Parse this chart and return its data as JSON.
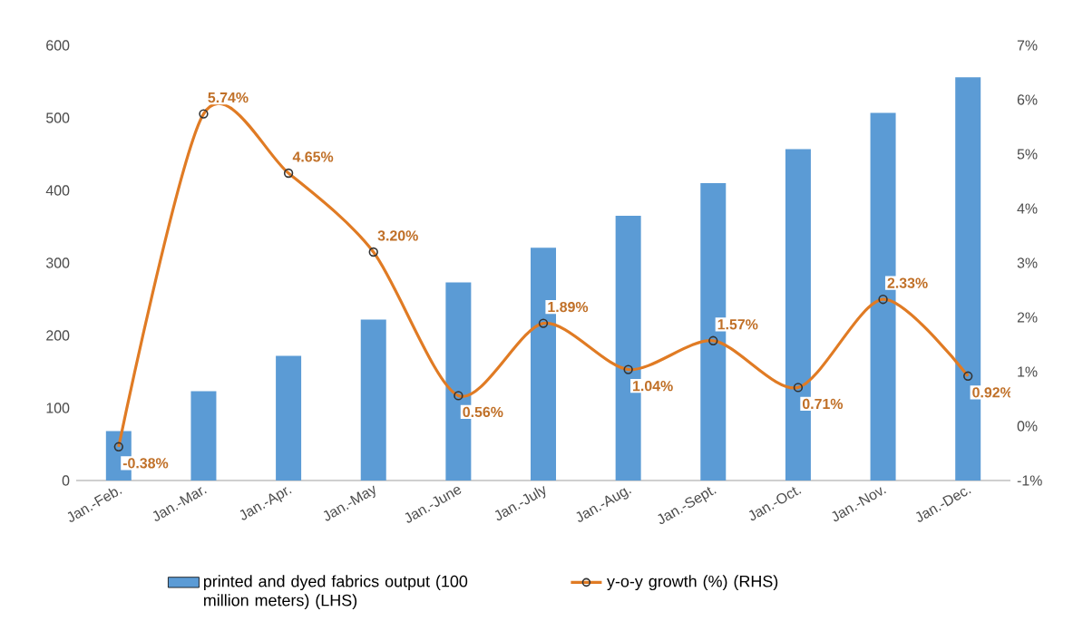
{
  "chart_data": {
    "type": "bar",
    "categories": [
      "Jan.-Feb.",
      "Jan.-Mar.",
      "Jan.-Apr.",
      "Jan.-May",
      "Jan.-June",
      "Jan.-July",
      "Jan.-Aug.",
      "Jan.-Sept.",
      "Jan.-Oct.",
      "Jan.-Nov.",
      "Jan.-Dec."
    ],
    "series": [
      {
        "name": "printed and dyed fabrics output (100 million meters) (LHS)",
        "color": "#5b9bd5",
        "values": [
          68,
          123,
          172,
          222,
          273,
          321,
          365,
          410,
          457,
          507,
          556
        ]
      },
      {
        "name": "y-o-y growth (%) (RHS)",
        "type": "line",
        "axis": "y2",
        "color": "#e07b24",
        "values": [
          -0.38,
          5.74,
          4.65,
          3.2,
          0.56,
          1.89,
          1.04,
          1.57,
          0.71,
          2.33,
          0.92
        ],
        "value_labels": [
          "-0.38%",
          "5.74%",
          "4.65%",
          "3.20%",
          "0.56%",
          "1.89%",
          "1.04%",
          "1.57%",
          "0.71%",
          "2.33%",
          "0.92%"
        ]
      }
    ],
    "ylim": [
      0,
      600
    ],
    "yticks": [
      0,
      100,
      200,
      300,
      400,
      500,
      600
    ],
    "y2lim": [
      -1,
      7
    ],
    "y2ticks": [
      {
        "value": -1,
        "label": "-1%"
      },
      {
        "value": 0,
        "label": "0%"
      },
      {
        "value": 1,
        "label": "1%"
      },
      {
        "value": 2,
        "label": "2%"
      },
      {
        "value": 3,
        "label": "3%"
      },
      {
        "value": 4,
        "label": "4%"
      },
      {
        "value": 5,
        "label": "5%"
      },
      {
        "value": 6,
        "label": "6%"
      },
      {
        "value": 7,
        "label": "7%"
      }
    ],
    "marker": "circle",
    "line_style": "solid",
    "grid": false,
    "legend": "bottom"
  }
}
